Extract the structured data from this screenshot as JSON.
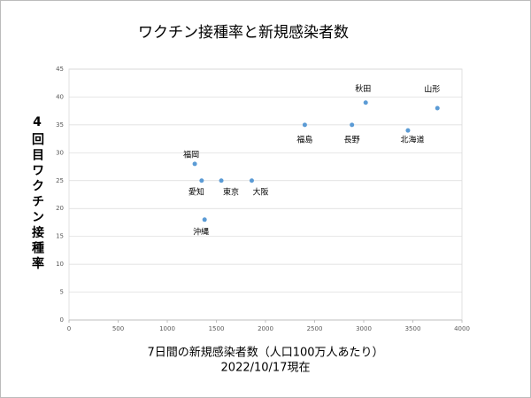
{
  "chart_data": {
    "type": "scatter",
    "title": "ワクチン接種率と新規感染者数",
    "xlabel": "7日間の新規感染者数（人口100万人あたり）",
    "xlabel_note": "2022/10/17現在",
    "ylabel": "4回目ワクチン接種率",
    "labels": [
      "山形",
      "秋田",
      "北海道",
      "長野",
      "福島",
      "大阪",
      "東京",
      "愛知",
      "福岡",
      "沖縄"
    ],
    "x": [
      3750,
      3020,
      3450,
      2880,
      2400,
      1860,
      1550,
      1350,
      1280,
      1380
    ],
    "values": [
      38,
      39,
      34,
      35,
      35,
      25,
      25,
      25,
      28,
      18
    ],
    "color": "#5b9bd5",
    "xlim": [
      0,
      4000
    ],
    "xticks": [
      0,
      500,
      1000,
      1500,
      2000,
      2500,
      3000,
      3500,
      4000
    ],
    "ylim": [
      0,
      45
    ],
    "yticks": [
      0,
      5,
      10,
      15,
      20,
      25,
      30,
      35,
      40,
      45
    ],
    "grid": true
  }
}
